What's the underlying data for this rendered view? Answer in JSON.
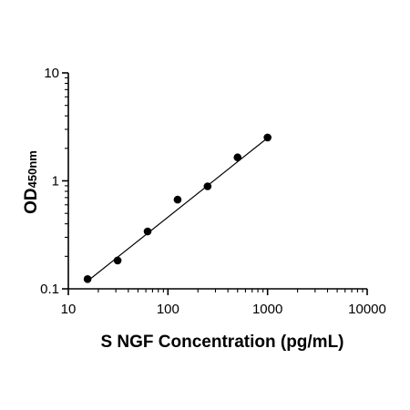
{
  "chart_data": {
    "type": "scatter",
    "title": "",
    "xlabel": "S NGF Concentration (pg/mL)",
    "ylabel": {
      "main": "OD",
      "subscript": "450nm"
    },
    "x_scale": "log",
    "y_scale": "log",
    "xlim": [
      10,
      10000
    ],
    "ylim": [
      0.1,
      10
    ],
    "x_ticks": [
      10,
      100,
      1000,
      10000
    ],
    "x_tick_labels": [
      "10",
      "100",
      "1000",
      "10000"
    ],
    "y_ticks": [
      0.1,
      1,
      10
    ],
    "y_tick_labels": [
      "0.1",
      "1",
      "10"
    ],
    "grid": false,
    "legend": "none",
    "series": [
      {
        "points": [
          {
            "x": 15.6,
            "y": 0.123
          },
          {
            "x": 31.25,
            "y": 0.183
          },
          {
            "x": 62.5,
            "y": 0.34
          },
          {
            "x": 125,
            "y": 0.67
          },
          {
            "x": 250,
            "y": 0.89
          },
          {
            "x": 500,
            "y": 1.65
          },
          {
            "x": 1000,
            "y": 2.52
          }
        ]
      }
    ],
    "fit_line": {
      "x": [
        15.6,
        1000
      ],
      "y": [
        0.118,
        2.5
      ]
    },
    "colors": {
      "marker": "#000000",
      "line": "#000000",
      "axis": "#000000"
    }
  }
}
